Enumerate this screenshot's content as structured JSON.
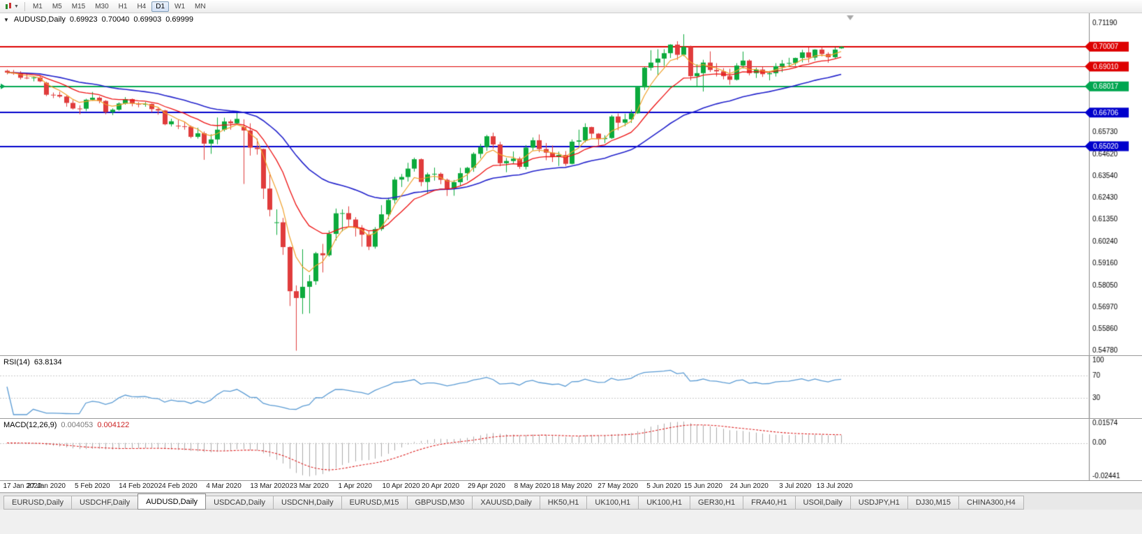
{
  "toolbar": {
    "timeframes": [
      "M1",
      "M5",
      "M15",
      "M30",
      "H1",
      "H4",
      "D1",
      "W1",
      "MN"
    ],
    "active_timeframe": "D1"
  },
  "chart": {
    "title": "AUDUSD,Daily",
    "open": "0.69923",
    "high": "0.70040",
    "low": "0.69903",
    "close": "0.69999",
    "colors": {
      "up": "#0caa3c",
      "down": "#e03c3c"
    },
    "price_range": {
      "top": 0.7168,
      "bottom": 0.5455
    },
    "price_axis_labels": [
      "0.71190",
      "0.65730",
      "0.64620",
      "0.63540",
      "0.62430",
      "0.61350",
      "0.60240",
      "0.59160",
      "0.58050",
      "0.56970",
      "0.55860",
      "0.54780"
    ],
    "hlines": [
      {
        "label": "0.70007",
        "value": 0.70007,
        "color": "#dd0000",
        "width": 2
      },
      {
        "label": "0.69010",
        "value": 0.6901,
        "color": "#dd0000",
        "width": 1
      },
      {
        "label": "0.68017",
        "value": 0.68017,
        "color": "#00a650",
        "width": 2
      },
      {
        "label": "0.66706",
        "value": 0.66706,
        "color": "#0000cc",
        "width": 2
      },
      {
        "label": "0.65020",
        "value": 0.6502,
        "color": "#0000cc",
        "width": 2
      }
    ],
    "moving_averages": [
      {
        "period": 34,
        "color": "#2222cc",
        "width": 1.6
      },
      {
        "period": 13,
        "color": "#ee1111",
        "width": 1.3
      },
      {
        "period": 5,
        "color": "#f0a028",
        "width": 1.2
      }
    ],
    "x_ticks": [
      {
        "index": 0,
        "label": "17 Jan 2020"
      },
      {
        "index": 6,
        "label": "27 Jan 2020"
      },
      {
        "index": 13,
        "label": "5 Feb 2020"
      },
      {
        "index": 20,
        "label": "14 Feb 2020"
      },
      {
        "index": 26,
        "label": "24 Feb 2020"
      },
      {
        "index": 33,
        "label": "4 Mar 2020"
      },
      {
        "index": 40,
        "label": "13 Mar 2020"
      },
      {
        "index": 46,
        "label": "23 Mar 2020"
      },
      {
        "index": 53,
        "label": "1 Apr 2020"
      },
      {
        "index": 60,
        "label": "10 Apr 2020"
      },
      {
        "index": 66,
        "label": "20 Apr 2020"
      },
      {
        "index": 73,
        "label": "29 Apr 2020"
      },
      {
        "index": 80,
        "label": "8 May 2020"
      },
      {
        "index": 86,
        "label": "18 May 2020"
      },
      {
        "index": 93,
        "label": "27 May 2020"
      },
      {
        "index": 100,
        "label": "5 Jun 2020"
      },
      {
        "index": 106,
        "label": "15 Jun 2020"
      },
      {
        "index": 113,
        "label": "24 Jun 2020"
      },
      {
        "index": 120,
        "label": "3 Jul 2020"
      },
      {
        "index": 126,
        "label": "13 Jul 2020"
      }
    ],
    "candles": [
      [
        0.688,
        0.6886,
        0.6862,
        0.6871
      ],
      [
        0.6871,
        0.6884,
        0.686,
        0.6866
      ],
      [
        0.6866,
        0.6878,
        0.6836,
        0.6845
      ],
      [
        0.6845,
        0.6867,
        0.6838,
        0.6843
      ],
      [
        0.6843,
        0.6852,
        0.6827,
        0.6846
      ],
      [
        0.6846,
        0.6857,
        0.6823,
        0.6827
      ],
      [
        0.682,
        0.6825,
        0.6753,
        0.676
      ],
      [
        0.676,
        0.6771,
        0.6743,
        0.6759
      ],
      [
        0.6759,
        0.6775,
        0.6744,
        0.6751
      ],
      [
        0.6751,
        0.6756,
        0.67,
        0.6719
      ],
      [
        0.6719,
        0.6733,
        0.6686,
        0.6691
      ],
      [
        0.6691,
        0.6707,
        0.6662,
        0.669
      ],
      [
        0.669,
        0.674,
        0.6678,
        0.6735
      ],
      [
        0.6735,
        0.6774,
        0.673,
        0.6745
      ],
      [
        0.6745,
        0.6752,
        0.6717,
        0.6729
      ],
      [
        0.6729,
        0.6733,
        0.6662,
        0.6673
      ],
      [
        0.6673,
        0.6692,
        0.6658,
        0.6685
      ],
      [
        0.6685,
        0.6722,
        0.668,
        0.6716
      ],
      [
        0.6716,
        0.6748,
        0.671,
        0.6738
      ],
      [
        0.6738,
        0.6741,
        0.6702,
        0.6716
      ],
      [
        0.6716,
        0.6723,
        0.6697,
        0.6711
      ],
      [
        0.6711,
        0.6723,
        0.67,
        0.6714
      ],
      [
        0.6714,
        0.6716,
        0.6672,
        0.6688
      ],
      [
        0.6688,
        0.6694,
        0.666,
        0.6681
      ],
      [
        0.6681,
        0.6684,
        0.6607,
        0.6612
      ],
      [
        0.6612,
        0.664,
        0.6601,
        0.6627
      ],
      [
        0.6605,
        0.6635,
        0.6588,
        0.6602
      ],
      [
        0.6602,
        0.6626,
        0.6585,
        0.66
      ],
      [
        0.66,
        0.6606,
        0.6542,
        0.6549
      ],
      [
        0.6549,
        0.6595,
        0.654,
        0.6567
      ],
      [
        0.6567,
        0.6576,
        0.6434,
        0.6515
      ],
      [
        0.6515,
        0.6562,
        0.6464,
        0.6536
      ],
      [
        0.6536,
        0.6646,
        0.6512,
        0.6585
      ],
      [
        0.6585,
        0.6645,
        0.6576,
        0.6626
      ],
      [
        0.6626,
        0.6635,
        0.6585,
        0.6617
      ],
      [
        0.6617,
        0.6668,
        0.6612,
        0.6639
      ],
      [
        0.6598,
        0.6637,
        0.6313,
        0.6581
      ],
      [
        0.6581,
        0.6617,
        0.6455,
        0.6495
      ],
      [
        0.6495,
        0.654,
        0.646,
        0.6488
      ],
      [
        0.6488,
        0.649,
        0.6238,
        0.629
      ],
      [
        0.629,
        0.6371,
        0.6151,
        0.6184
      ],
      [
        0.612,
        0.6186,
        0.6058,
        0.6121
      ],
      [
        0.6121,
        0.6143,
        0.5958,
        0.5997
      ],
      [
        0.5997,
        0.6001,
        0.5702,
        0.5776
      ],
      [
        0.5776,
        0.5805,
        0.5478,
        0.5742
      ],
      [
        0.5742,
        0.5986,
        0.5662,
        0.5798
      ],
      [
        0.5798,
        0.5857,
        0.5665,
        0.5826
      ],
      [
        0.5826,
        0.5973,
        0.5808,
        0.5966
      ],
      [
        0.5966,
        0.6013,
        0.587,
        0.5956
      ],
      [
        0.5956,
        0.608,
        0.5949,
        0.6063
      ],
      [
        0.6063,
        0.619,
        0.603,
        0.6166
      ],
      [
        0.6166,
        0.6186,
        0.6076,
        0.6167
      ],
      [
        0.6167,
        0.6201,
        0.6101,
        0.6135
      ],
      [
        0.6135,
        0.6147,
        0.605,
        0.6093
      ],
      [
        0.6093,
        0.6107,
        0.5999,
        0.6059
      ],
      [
        0.6059,
        0.6076,
        0.5982,
        0.5999
      ],
      [
        0.5999,
        0.6097,
        0.5989,
        0.6087
      ],
      [
        0.6087,
        0.6207,
        0.6078,
        0.6161
      ],
      [
        0.6161,
        0.6244,
        0.6136,
        0.6233
      ],
      [
        0.6233,
        0.6348,
        0.6215,
        0.6335
      ],
      [
        0.6335,
        0.6363,
        0.6298,
        0.6348
      ],
      [
        0.6348,
        0.6419,
        0.6325,
        0.639
      ],
      [
        0.639,
        0.6445,
        0.6375,
        0.6437
      ],
      [
        0.6437,
        0.6441,
        0.6302,
        0.6323
      ],
      [
        0.6323,
        0.637,
        0.6264,
        0.6361
      ],
      [
        0.6361,
        0.6395,
        0.633,
        0.6364
      ],
      [
        0.6364,
        0.6371,
        0.6312,
        0.6334
      ],
      [
        0.6334,
        0.634,
        0.6253,
        0.629
      ],
      [
        0.629,
        0.6333,
        0.6254,
        0.6322
      ],
      [
        0.6322,
        0.6394,
        0.6302,
        0.6367
      ],
      [
        0.6367,
        0.6399,
        0.6331,
        0.6394
      ],
      [
        0.6394,
        0.6472,
        0.6374,
        0.6464
      ],
      [
        0.6464,
        0.6514,
        0.6441,
        0.6498
      ],
      [
        0.6498,
        0.6559,
        0.6479,
        0.6552
      ],
      [
        0.6552,
        0.657,
        0.649,
        0.6511
      ],
      [
        0.6511,
        0.6524,
        0.6402,
        0.6417
      ],
      [
        0.6417,
        0.6443,
        0.6372,
        0.6428
      ],
      [
        0.6428,
        0.6476,
        0.6415,
        0.644
      ],
      [
        0.644,
        0.6449,
        0.6389,
        0.6399
      ],
      [
        0.6399,
        0.6508,
        0.6386,
        0.6495
      ],
      [
        0.6495,
        0.6546,
        0.6481,
        0.6532
      ],
      [
        0.6532,
        0.6561,
        0.6472,
        0.6488
      ],
      [
        0.6488,
        0.6518,
        0.6432,
        0.647
      ],
      [
        0.647,
        0.6506,
        0.6423,
        0.6449
      ],
      [
        0.6449,
        0.6475,
        0.6403,
        0.6458
      ],
      [
        0.6458,
        0.6478,
        0.6404,
        0.6414
      ],
      [
        0.6414,
        0.6536,
        0.6411,
        0.6525
      ],
      [
        0.6525,
        0.6585,
        0.6505,
        0.6531
      ],
      [
        0.6531,
        0.6617,
        0.6521,
        0.6598
      ],
      [
        0.6598,
        0.66,
        0.6543,
        0.6565
      ],
      [
        0.6565,
        0.6568,
        0.6508,
        0.6538
      ],
      [
        0.6538,
        0.6557,
        0.6518,
        0.6543
      ],
      [
        0.6543,
        0.6659,
        0.6538,
        0.6651
      ],
      [
        0.6651,
        0.6666,
        0.6582,
        0.662
      ],
      [
        0.662,
        0.6665,
        0.6602,
        0.6637
      ],
      [
        0.6637,
        0.6684,
        0.6619,
        0.6667
      ],
      [
        0.6667,
        0.6799,
        0.6664,
        0.6797
      ],
      [
        0.6797,
        0.6899,
        0.6784,
        0.6895
      ],
      [
        0.6895,
        0.6983,
        0.6881,
        0.6921
      ],
      [
        0.6921,
        0.6988,
        0.6858,
        0.6941
      ],
      [
        0.6941,
        0.6988,
        0.6904,
        0.6968
      ],
      [
        0.6968,
        0.7013,
        0.6944,
        0.7011
      ],
      [
        0.7011,
        0.7028,
        0.6935,
        0.696
      ],
      [
        0.696,
        0.7063,
        0.6953,
        0.7
      ],
      [
        0.7,
        0.7006,
        0.6832,
        0.6853
      ],
      [
        0.6853,
        0.6913,
        0.6799,
        0.6868
      ],
      [
        0.6868,
        0.6935,
        0.6776,
        0.6921
      ],
      [
        0.6921,
        0.6977,
        0.6874,
        0.6884
      ],
      [
        0.6884,
        0.6918,
        0.6851,
        0.6877
      ],
      [
        0.6877,
        0.6893,
        0.6837,
        0.6853
      ],
      [
        0.6853,
        0.689,
        0.681,
        0.6835
      ],
      [
        0.6835,
        0.6918,
        0.6831,
        0.6906
      ],
      [
        0.6906,
        0.6976,
        0.6891,
        0.6931
      ],
      [
        0.6931,
        0.6937,
        0.6857,
        0.6868
      ],
      [
        0.6868,
        0.6896,
        0.6844,
        0.6886
      ],
      [
        0.6886,
        0.6899,
        0.6849,
        0.6863
      ],
      [
        0.6863,
        0.6879,
        0.6832,
        0.6868
      ],
      [
        0.6868,
        0.6918,
        0.6851,
        0.6903
      ],
      [
        0.6903,
        0.6934,
        0.6873,
        0.6916
      ],
      [
        0.6916,
        0.6945,
        0.6901,
        0.6919
      ],
      [
        0.6919,
        0.6946,
        0.6905,
        0.6944
      ],
      [
        0.6944,
        0.6985,
        0.6922,
        0.6972
      ],
      [
        0.6972,
        0.6998,
        0.6921,
        0.6946
      ],
      [
        0.6946,
        0.6988,
        0.6932,
        0.6986
      ],
      [
        0.6986,
        0.7,
        0.6952,
        0.6964
      ],
      [
        0.6964,
        0.6973,
        0.692,
        0.6948
      ],
      [
        0.6948,
        0.6998,
        0.6941,
        0.6986
      ],
      [
        0.69923,
        0.7004,
        0.69903,
        0.69999
      ]
    ]
  },
  "rsi": {
    "label": "RSI(14)",
    "value": "63.8134",
    "period": 14,
    "levels": [
      "100",
      "70",
      "30"
    ],
    "color": "#5a9bd4"
  },
  "macd": {
    "label": "MACD(12,26,9)",
    "main_value": "0.004053",
    "signal_value": "0.004122",
    "fast": 12,
    "slow": 26,
    "signal": 9,
    "histogram_color": "#aaaaaa",
    "signal_color": "#dd2222",
    "range": {
      "top": 0.0165,
      "bottom": -0.0255
    },
    "axis_labels": [
      {
        "text": "0.01574",
        "value": 0.01574
      },
      {
        "text": "0.00",
        "value": 0
      },
      {
        "text": "-0.02441",
        "value": -0.02441
      }
    ]
  },
  "tabs": {
    "active_index": 2,
    "items": [
      "EURUSD,Daily",
      "USDCHF,Daily",
      "AUDUSD,Daily",
      "USDCAD,Daily",
      "USDCNH,Daily",
      "EURUSD,M15",
      "GBPUSD,M30",
      "XAUUSD,Daily",
      "HK50,H1",
      "UK100,H1",
      "UK100,H1",
      "GER30,H1",
      "FRA40,H1",
      "USOil,Daily",
      "USDJPY,H1",
      "DJ30,M15",
      "CHINA300,H4"
    ]
  }
}
